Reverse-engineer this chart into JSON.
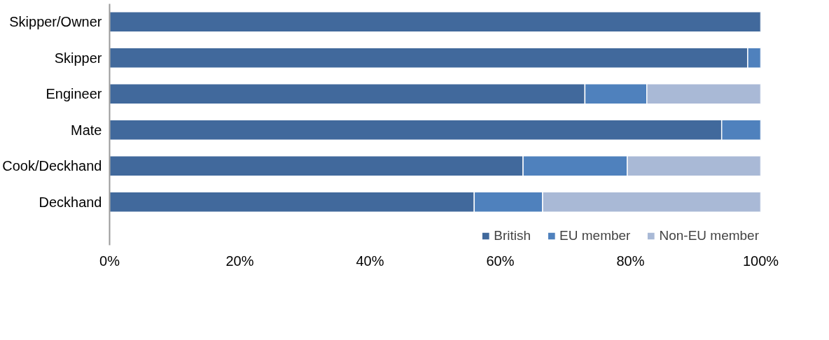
{
  "chart_data": {
    "type": "bar",
    "orientation": "horizontal",
    "stacked": true,
    "categories": [
      "Skipper/Owner",
      "Skipper",
      "Engineer",
      "Mate",
      "Cook/Deckhand",
      "Deckhand"
    ],
    "series": [
      {
        "name": "British",
        "color": "#41699c",
        "values": [
          100,
          98,
          73,
          94,
          63.5,
          56
        ]
      },
      {
        "name": "EU member",
        "color": "#4f81bd",
        "values": [
          0,
          2,
          9.5,
          6,
          16,
          10.5
        ]
      },
      {
        "name": "Non-EU member",
        "color": "#a9b9d6",
        "values": [
          0,
          0,
          17.5,
          0,
          20.5,
          33.5
        ]
      }
    ],
    "xlim": [
      0,
      100
    ],
    "xticks": [
      {
        "value": 0,
        "label": "0%"
      },
      {
        "value": 20,
        "label": "20%"
      },
      {
        "value": 40,
        "label": "40%"
      },
      {
        "value": 60,
        "label": "60%"
      },
      {
        "value": 80,
        "label": "80%"
      },
      {
        "value": 100,
        "label": "100%"
      }
    ],
    "grid": false,
    "legend": "bottom right"
  }
}
